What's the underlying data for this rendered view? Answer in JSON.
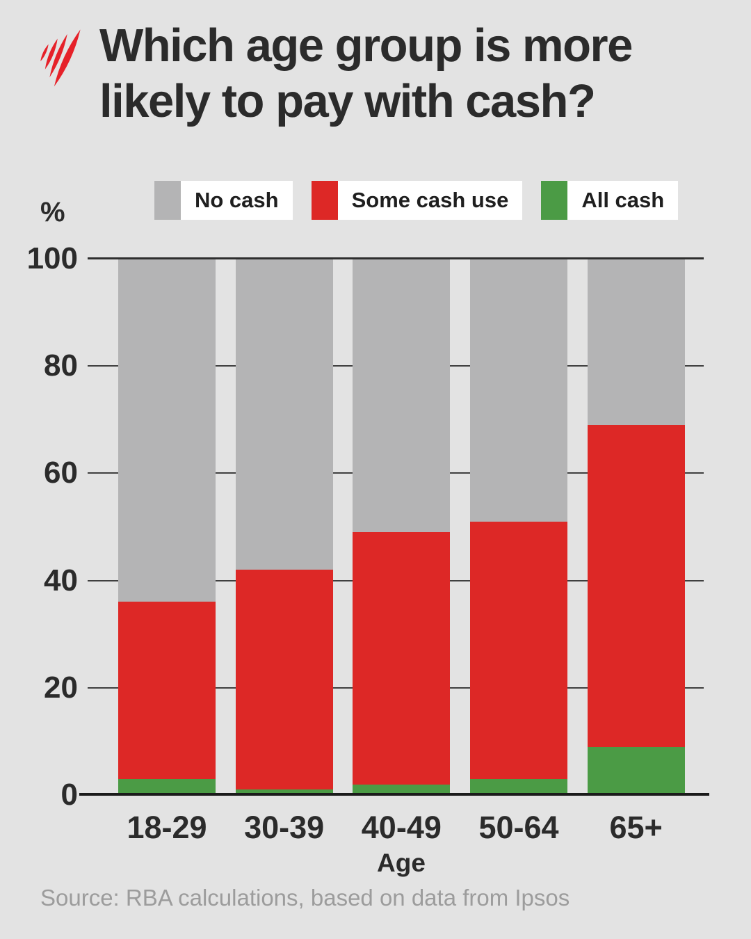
{
  "header": {
    "title_line1": "Which age group is more",
    "title_line2": "likely to pay with cash?",
    "logo": "sbs-flame-logo",
    "logo_color": "#e62129"
  },
  "legend": {
    "items": [
      {
        "label": "No cash",
        "color": "#b4b4b5"
      },
      {
        "label": "Some cash use",
        "color": "#dd2826"
      },
      {
        "label": "All cash",
        "color": "#4b9b45"
      }
    ]
  },
  "chart_data": {
    "type": "bar",
    "stacked": true,
    "unit": "%",
    "title": "Which age group is more likely to pay with cash?",
    "categories": [
      "18-29",
      "30-39",
      "40-49",
      "50-64",
      "65+"
    ],
    "series": [
      {
        "name": "All cash",
        "color": "#4b9b45",
        "values": [
          3,
          1,
          2,
          3,
          9
        ]
      },
      {
        "name": "Some cash use",
        "color": "#dd2826",
        "values": [
          33,
          41,
          47,
          48,
          60
        ]
      },
      {
        "name": "No cash",
        "color": "#b4b4b5",
        "values": [
          64,
          58,
          51,
          49,
          31
        ]
      }
    ],
    "xlabel": "Age",
    "ylabel": "%",
    "ylim": [
      0,
      100
    ],
    "yticks": [
      0,
      20,
      40,
      60,
      80,
      100
    ],
    "grid": true,
    "legend_position": "top"
  },
  "footer": {
    "source": "Source: RBA calculations, based on data from Ipsos"
  }
}
